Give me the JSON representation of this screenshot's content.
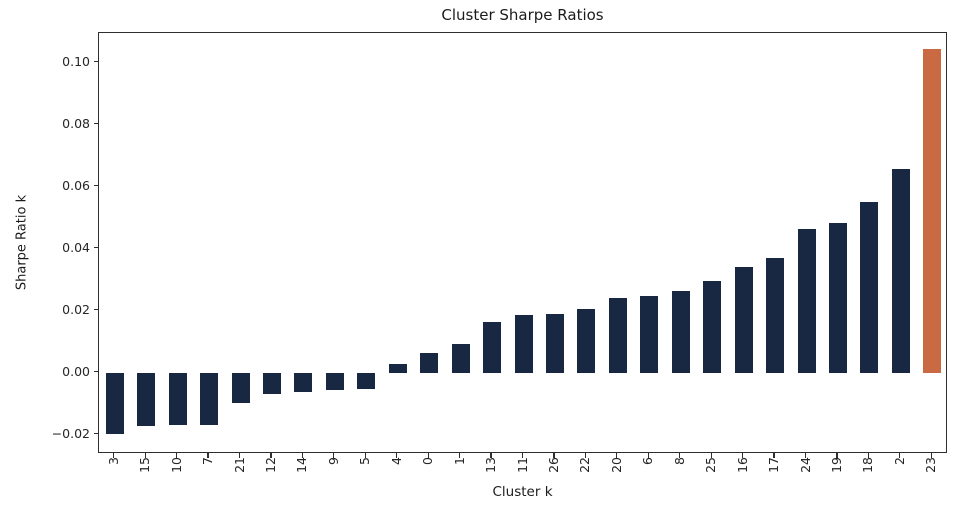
{
  "chart_data": {
    "type": "bar",
    "title": "Cluster Sharpe Ratios",
    "xlabel": "Cluster k",
    "ylabel": "Sharpe Ratio k",
    "categories": [
      "3",
      "15",
      "10",
      "7",
      "21",
      "12",
      "14",
      "9",
      "5",
      "4",
      "0",
      "1",
      "13",
      "11",
      "26",
      "22",
      "20",
      "6",
      "8",
      "25",
      "16",
      "17",
      "24",
      "19",
      "18",
      "2",
      "23"
    ],
    "values": [
      -0.0196,
      -0.0172,
      -0.0169,
      -0.0167,
      -0.0097,
      -0.007,
      -0.0063,
      -0.0055,
      -0.0052,
      0.0028,
      0.0065,
      0.0092,
      0.0163,
      0.0185,
      0.0191,
      0.0206,
      0.024,
      0.0247,
      0.0264,
      0.0296,
      0.0341,
      0.0371,
      0.0465,
      0.0482,
      0.0552,
      0.0658,
      0.1043
    ],
    "yticks": [
      0.1,
      0.08,
      0.06,
      0.04,
      0.02,
      0.0,
      -0.02
    ],
    "ylim": [
      -0.0262,
      0.1096
    ],
    "grid": false,
    "legend": null,
    "colors": {
      "bar_default": "#182843",
      "bar_highlight": "#c96a42",
      "highlight_category": "23",
      "axis": "#2e2e2e",
      "text": "#262626"
    }
  }
}
